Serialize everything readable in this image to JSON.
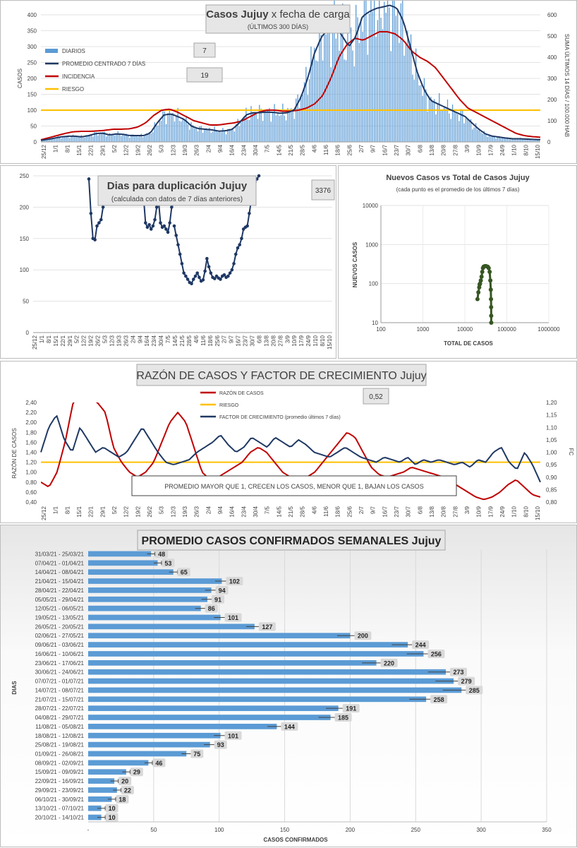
{
  "chart_data": [
    {
      "type": "bar",
      "id": "casos",
      "title": "Casos Jujuy",
      "title_suffix": "x fecha de carga",
      "subtitle": "(ÚLTIMOS 300 DÍAS)",
      "ylabel": "CASOS",
      "y2label": "SUMA ÚLTIMOS 14 DÍAS / 100.000 HAB",
      "ylim": [
        0,
        400
      ],
      "y2lim": [
        0,
        600
      ],
      "yticks": [
        0,
        50,
        100,
        150,
        200,
        250,
        300,
        350,
        400
      ],
      "y2ticks": [
        0,
        100,
        200,
        300,
        400,
        500,
        600
      ],
      "xticks": [
        "25/12",
        "1/1",
        "8/1",
        "15/1",
        "22/1",
        "29/1",
        "5/2",
        "12/2",
        "19/2",
        "26/2",
        "5/3",
        "12/3",
        "19/3",
        "26/3",
        "2/4",
        "9/4",
        "16/4",
        "23/4",
        "30/4",
        "7/5",
        "14/5",
        "21/5",
        "28/5",
        "4/6",
        "11/6",
        "18/6",
        "25/6",
        "2/7",
        "9/7",
        "16/7",
        "23/7",
        "30/7",
        "6/8",
        "13/8",
        "20/8",
        "27/8",
        "3/9",
        "10/9",
        "17/9",
        "24/9",
        "1/10",
        "8/10",
        "15/10"
      ],
      "legend": [
        "DIARIOS",
        "PROMEDIO CENTRADO 7 DÍAS",
        "INCIDENCIA",
        "RIESGO"
      ],
      "colors": {
        "diarios": "#5b9bd5",
        "promedio": "#1f3864",
        "incidencia": "#c00000",
        "riesgo": "#ffc000"
      },
      "box1": "7",
      "box2": "19",
      "riesgo": 100,
      "promedio_7d": [
        5,
        8,
        12,
        16,
        18,
        18,
        16,
        20,
        26,
        28,
        22,
        25,
        24,
        20,
        20,
        20,
        28,
        60,
        85,
        88,
        80,
        70,
        50,
        42,
        40,
        38,
        34,
        35,
        40,
        60,
        85,
        92,
        92,
        94,
        93,
        90,
        92,
        100,
        140,
        200,
        280,
        330,
        355,
        365,
        335,
        300,
        330,
        395,
        410,
        420,
        425,
        430,
        422,
        380,
        300,
        220,
        165,
        130,
        120,
        110,
        100,
        90,
        80,
        60,
        40,
        25,
        18,
        15,
        12,
        10,
        10,
        9,
        8,
        7
      ],
      "incidencia": [
        10,
        20,
        30,
        40,
        48,
        50,
        50,
        52,
        55,
        60,
        60,
        62,
        70,
        90,
        125,
        150,
        155,
        140,
        120,
        100,
        90,
        80,
        80,
        85,
        90,
        100,
        120,
        140,
        150,
        150,
        145,
        145,
        150,
        160,
        180,
        220,
        300,
        400,
        460,
        490,
        480,
        500,
        520,
        520,
        510,
        480,
        430,
        400,
        380,
        350,
        300,
        250,
        200,
        160,
        140,
        120,
        100,
        80,
        60,
        40,
        30,
        25,
        22
      ],
      "diarios_7d_sample": "derived from promedio_7d"
    },
    {
      "type": "line",
      "id": "duplicacion",
      "title": "Dias para duplicación Jujuy",
      "subtitle": "(calculada con datos de 7 días anteriores)",
      "ylim": [
        0,
        250
      ],
      "yticks": [
        0,
        50,
        100,
        150,
        200,
        250
      ],
      "xticks": [
        "25/12",
        "1/1",
        "8/1",
        "15/1",
        "22/1",
        "29/1",
        "5/2",
        "12/2",
        "19/2",
        "26/2",
        "5/3",
        "12/3",
        "19/3",
        "26/3",
        "2/4",
        "9/4",
        "16/4",
        "23/4",
        "30/4",
        "7/5",
        "14/5",
        "21/5",
        "28/5",
        "4/6",
        "11/6",
        "18/6",
        "25/6",
        "2/7",
        "9/7",
        "16/7",
        "23/7",
        "30/7",
        "6/8",
        "13/8",
        "20/8",
        "27/8",
        "3/9",
        "10/9",
        "17/9",
        "24/9",
        "1/10",
        "8/10",
        "15/10"
      ],
      "box": "3376",
      "segment1": [
        245,
        190,
        150,
        148,
        170,
        175,
        180,
        200,
        240
      ],
      "segment2": [
        245,
        215,
        175,
        168,
        172,
        165,
        170,
        180,
        200,
        210,
        175,
        168,
        170,
        165,
        160,
        175,
        200,
        205
      ],
      "segment3": [
        170,
        155,
        140,
        125,
        110,
        95,
        90,
        85,
        80,
        78,
        85,
        90,
        95,
        88,
        82,
        84,
        98,
        118,
        105,
        95,
        88,
        86,
        90,
        87,
        85,
        90,
        92,
        88,
        90,
        95,
        100,
        110,
        125,
        135,
        140,
        150,
        165,
        168,
        170,
        190,
        210,
        230,
        240,
        245,
        250
      ]
    },
    {
      "type": "scatter",
      "id": "nuevos_vs_total",
      "title": "Nuevos Casos vs Total de Casos Jujuy",
      "subtitle": "(cada punto es el promedio de los últimos 7 días)",
      "xlabel": "TOTAL DE CASOS",
      "ylabel": "NUEVOS CASOS",
      "xscale": "log",
      "yscale": "log",
      "xticks": [
        "100",
        "1000",
        "10000",
        "100000",
        "1000000"
      ],
      "yticks": [
        "10",
        "100",
        "1000",
        "10000"
      ],
      "color": "#375623",
      "x": [
        20000,
        21000,
        22000,
        22500,
        23000,
        24000,
        25000,
        26000,
        27000,
        28000,
        30000,
        32000,
        35000,
        37000,
        39000,
        40500,
        41500,
        42000,
        42300,
        42500,
        42600
      ],
      "y": [
        40,
        60,
        80,
        95,
        100,
        120,
        150,
        200,
        250,
        270,
        280,
        280,
        270,
        250,
        200,
        120,
        70,
        40,
        25,
        15,
        10
      ]
    },
    {
      "type": "line",
      "id": "razon",
      "title": "RAZÓN DE CASOS Y FACTOR DE CRECIMIENTO Jujuy",
      "ylabel": "RAZÓN DE CASOS",
      "y2label": "FC",
      "ylim": [
        0.4,
        2.4
      ],
      "y2lim": [
        0.8,
        1.2
      ],
      "yticks": [
        "0,40",
        "0,60",
        "0,80",
        "1,00",
        "1,20",
        "1,40",
        "1,60",
        "1,80",
        "2,00",
        "2,20",
        "2,40"
      ],
      "y2ticks": [
        "0,80",
        "0,85",
        "0,90",
        "0,95",
        "1,00",
        "1,05",
        "1,10",
        "1,15",
        "1,20"
      ],
      "xticks": [
        "25/12",
        "1/1",
        "8/1",
        "15/1",
        "22/1",
        "29/1",
        "5/2",
        "12/2",
        "19/2",
        "26/2",
        "5/3",
        "12/3",
        "19/3",
        "26/3",
        "2/4",
        "9/4",
        "16/4",
        "23/4",
        "30/4",
        "7/5",
        "14/5",
        "21/5",
        "28/5",
        "4/6",
        "11/6",
        "18/6",
        "25/6",
        "2/7",
        "9/7",
        "16/7",
        "23/7",
        "30/7",
        "6/8",
        "13/8",
        "20/8",
        "27/8",
        "3/9",
        "10/9",
        "17/9",
        "24/9",
        "1/10",
        "8/10",
        "15/10"
      ],
      "legend": [
        "RAZÓN DE CASOS",
        "RIESGO",
        "FACTOR DE CRECIMIENTO (promedio últimos 7 días)"
      ],
      "box": "0,52",
      "note": "PROMEDIO MAYOR QUE 1, CRECEN LOS CASOS, MENOR QUE 1, BAJAN LOS CASOS",
      "riesgo": 1.2,
      "razon": [
        0.8,
        0.7,
        1.0,
        1.6,
        2.4,
        2.6,
        2.5,
        2.4,
        2.2,
        1.5,
        1.2,
        1.0,
        0.9,
        1.0,
        1.2,
        1.6,
        2.0,
        2.2,
        2.0,
        1.5,
        1.0,
        0.85,
        0.9,
        1.0,
        1.1,
        1.2,
        1.4,
        1.5,
        1.4,
        1.2,
        1.0,
        0.9,
        0.85,
        0.9,
        1.0,
        1.2,
        1.4,
        1.6,
        1.8,
        1.7,
        1.4,
        1.1,
        0.95,
        0.9,
        0.95,
        1.0,
        1.1,
        1.05,
        1.0,
        0.95,
        0.9,
        0.8,
        0.7,
        0.6,
        0.5,
        0.45,
        0.5,
        0.6,
        0.75,
        0.85,
        0.7,
        0.55,
        0.5
      ],
      "fc": [
        1.0,
        1.1,
        1.15,
        1.05,
        1.0,
        1.1,
        1.05,
        1.0,
        1.02,
        1.0,
        0.98,
        1.0,
        1.05,
        1.1,
        1.05,
        1.0,
        0.96,
        0.95,
        0.96,
        0.97,
        1.0,
        1.02,
        1.04,
        1.07,
        1.03,
        1.0,
        1.02,
        1.06,
        1.04,
        1.02,
        1.06,
        1.04,
        1.02,
        1.05,
        1.03,
        1.0,
        0.99,
        0.98,
        1.0,
        1.02,
        1.0,
        0.98,
        0.97,
        0.96,
        0.98,
        0.97,
        0.96,
        0.98,
        0.95,
        0.97,
        0.96,
        0.97,
        0.96,
        0.95,
        0.96,
        0.94,
        0.97,
        0.96,
        1.0,
        1.02,
        0.96,
        0.93,
        1.0,
        0.95,
        0.88
      ]
    },
    {
      "type": "bar",
      "id": "semanales",
      "orientation": "horizontal",
      "title": "PROMEDIO CASOS CONFIRMADOS SEMANALES Jujuy",
      "xlabel": "CASOS CONFIRMADOS",
      "ylabel": "DIAS",
      "xlim": [
        0,
        350
      ],
      "xticks": [
        "-",
        "50",
        "100",
        "150",
        "200",
        "250",
        "300",
        "350"
      ],
      "color": "#5b9bd5",
      "categories": [
        "31/03/21 - 25/03/21",
        "07/04/21 - 01/04/21",
        "14/04/21 - 08/04/21",
        "21/04/21 - 15/04/21",
        "28/04/21 - 22/04/21",
        "05/05/21 - 29/04/21",
        "12/05/21 - 06/05/21",
        "19/05/21 - 13/05/21",
        "26/05/21 - 20/05/21",
        "02/06/21 - 27/05/21",
        "09/06/21 - 03/06/21",
        "16/06/21 - 10/06/21",
        "23/06/21 - 17/06/21",
        "30/06/21 - 24/06/21",
        "07/07/21 - 01/07/21",
        "14/07/21 - 08/07/21",
        "21/07/21 - 15/07/21",
        "28/07/21 - 22/07/21",
        "04/08/21 - 29/07/21",
        "11/08/21 - 05/08/21",
        "18/08/21 - 12/08/21",
        "25/08/21 - 19/08/21",
        "01/09/21 - 26/08/21",
        "08/09/21 - 02/09/21",
        "15/09/21 - 09/09/21",
        "22/09/21 - 16/09/21",
        "29/09/21 - 23/09/21",
        "06/10/21 - 30/09/21",
        "13/10/21 - 07/10/21",
        "20/10/21 - 14/10/21"
      ],
      "values": [
        48,
        53,
        65,
        102,
        94,
        91,
        86,
        101,
        127,
        200,
        244,
        256,
        220,
        273,
        279,
        285,
        258,
        191,
        185,
        144,
        101,
        93,
        75,
        46,
        29,
        20,
        22,
        18,
        10,
        10
      ],
      "labels": [
        "48",
        "53",
        "65",
        "102",
        "94",
        "91",
        "86",
        "101",
        "127",
        "200",
        "244",
        "256",
        "220",
        "273",
        "279",
        "285",
        "258",
        "191",
        "185",
        "144",
        "101",
        "93",
        "75",
        "46",
        "29",
        "20",
        "22",
        "18",
        "10",
        "10"
      ]
    }
  ]
}
